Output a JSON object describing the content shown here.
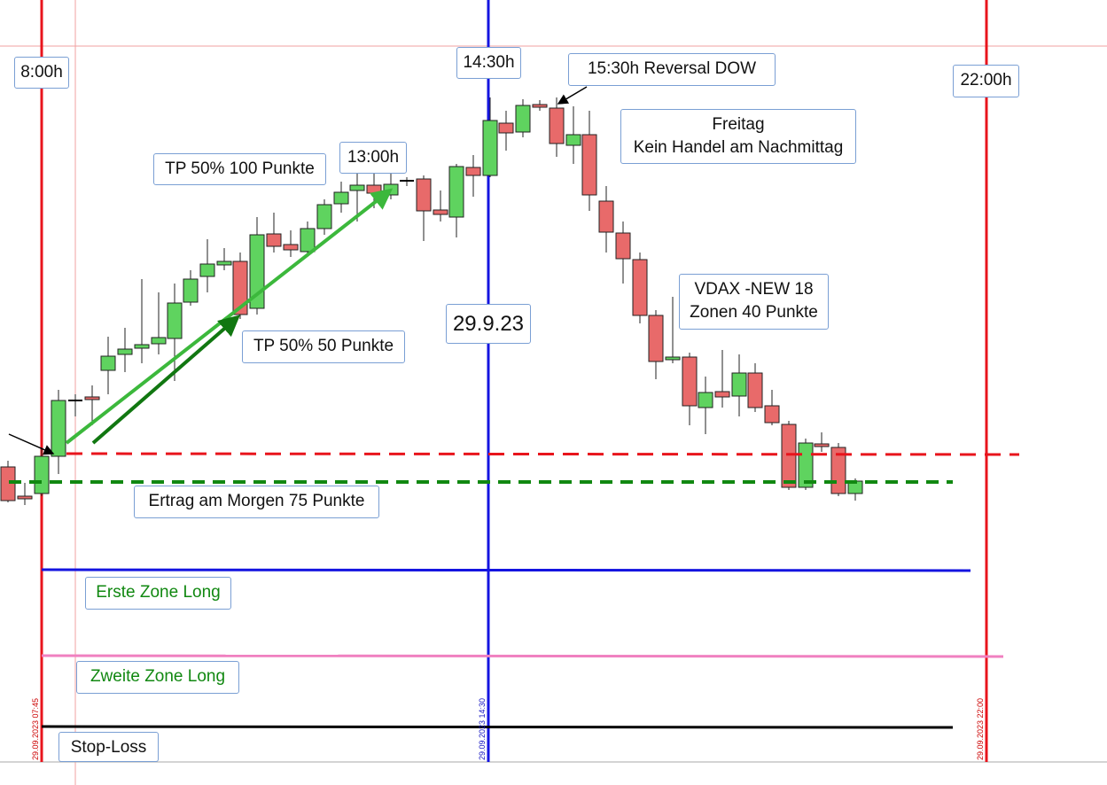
{
  "time_labels": {
    "start": "8:00h",
    "midday": "14:30h",
    "end": "22:00h",
    "noon": "13:00h",
    "date": "29.9.23"
  },
  "axis_stamps": [
    "29.09.2023 07:45",
    "29.09.2023 14:30",
    "29.09.2023 22:00"
  ],
  "notes": {
    "reversal": "15:30h Reversal DOW",
    "friday": [
      "Freitag",
      "Kein Handel am Nachmittag"
    ],
    "tp100": "TP 50% 100 Punkte",
    "tp50": "TP 50% 50 Punkte",
    "vdax": [
      "VDAX -NEW 18",
      "Zonen 40 Punkte"
    ],
    "morning": "Ertrag am Morgen 75 Punkte"
  },
  "zones": {
    "first": "Erste Zone Long",
    "second": "Zweite Zone Long",
    "stop": "Stop-Loss"
  }
}
